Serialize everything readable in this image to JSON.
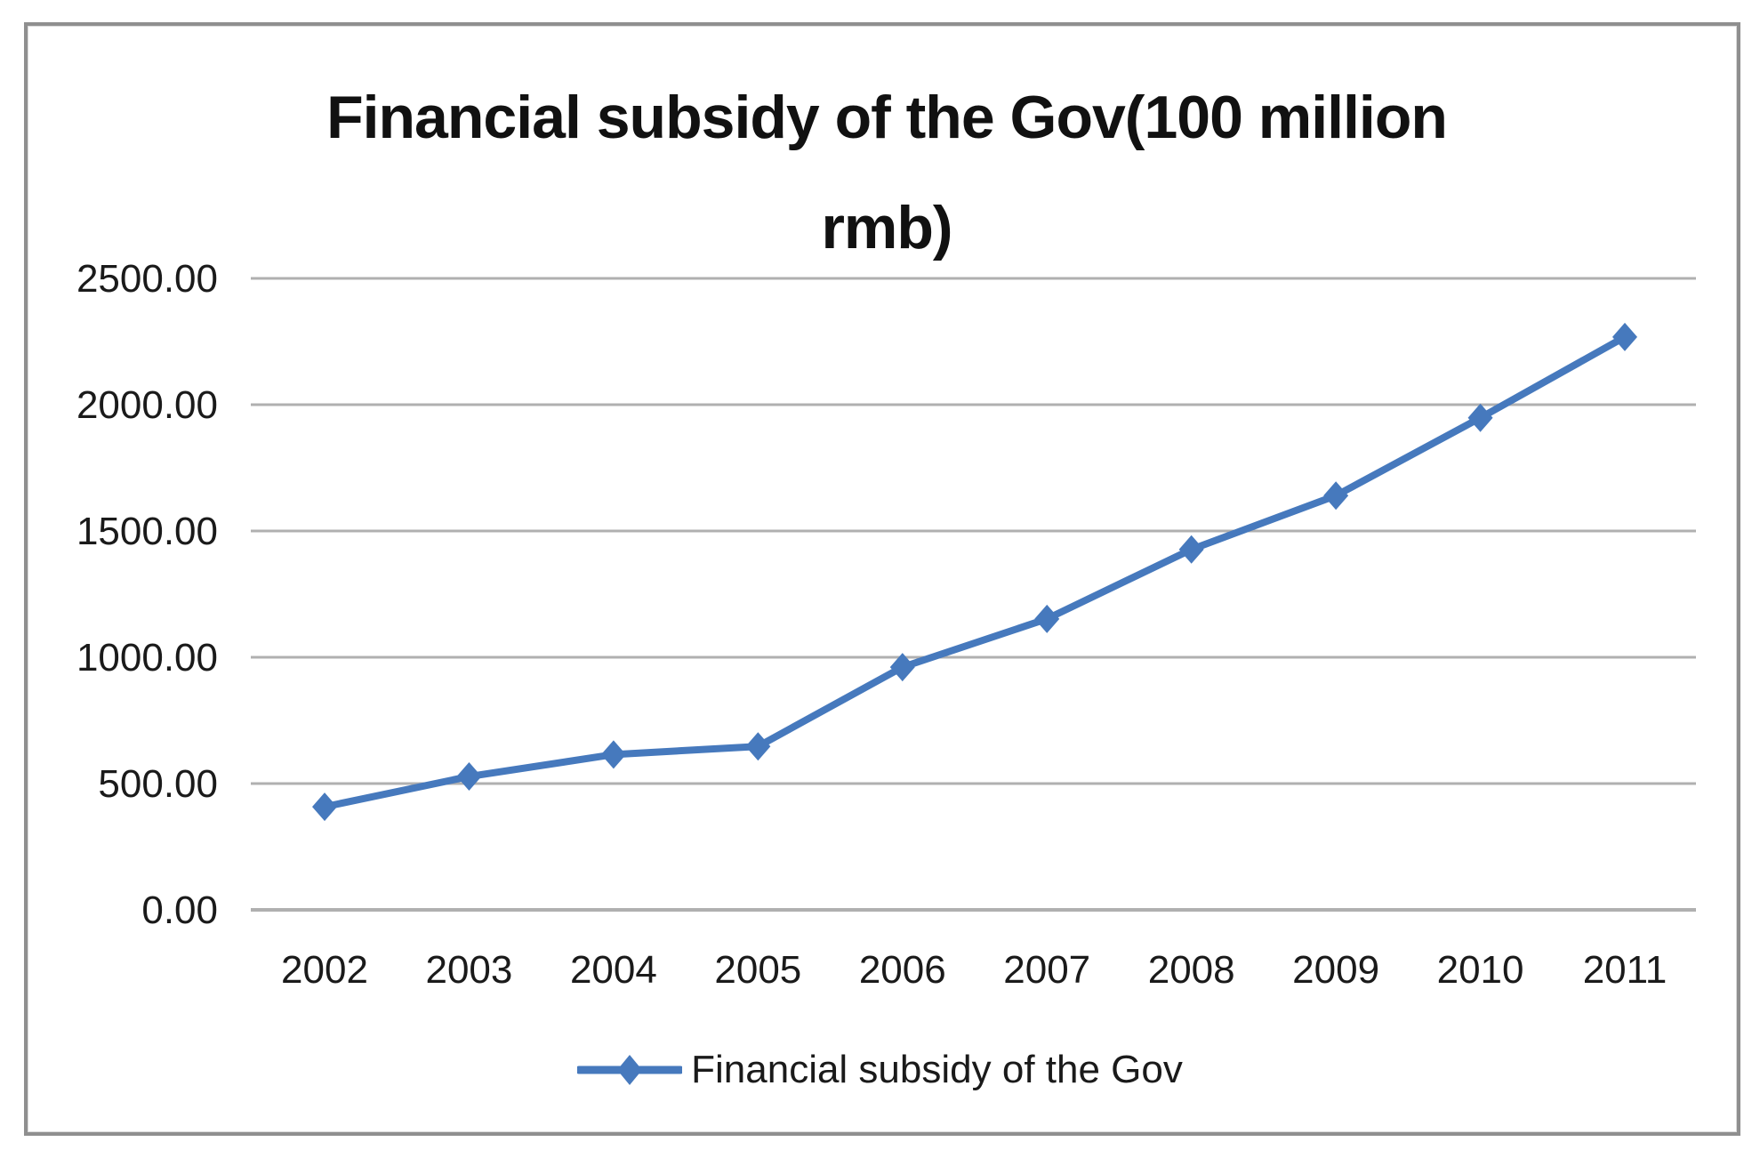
{
  "chart_data": {
    "type": "line",
    "title": "Financial subsidy of the Gov(100 million rmb)",
    "title_lines": [
      "Financial subsidy of the Gov(100 million",
      "rmb)"
    ],
    "categories": [
      "2002",
      "2003",
      "2004",
      "2005",
      "2006",
      "2007",
      "2008",
      "2009",
      "2010",
      "2011"
    ],
    "series": [
      {
        "name": "Financial subsidy of the Gov",
        "values": [
          408,
          528,
          615,
          647,
          961,
          1152,
          1427,
          1640,
          1948,
          2268
        ],
        "color": "#4679bd",
        "marker": "diamond"
      }
    ],
    "xlabel": "",
    "ylabel": "",
    "ylim": [
      0,
      2500
    ],
    "ytick_step": 500,
    "ytick_labels": [
      "0.00",
      "500.00",
      "1000.00",
      "1500.00",
      "2000.00",
      "2500.00"
    ],
    "grid": true,
    "gridline_color": "#b0b0b0",
    "legend_position": "bottom",
    "legend_label": "Financial subsidy of the Gov"
  },
  "colors": {
    "frame_border": "#8f8f8f",
    "axis_text": "#1a1a1a",
    "background": "#ffffff"
  }
}
